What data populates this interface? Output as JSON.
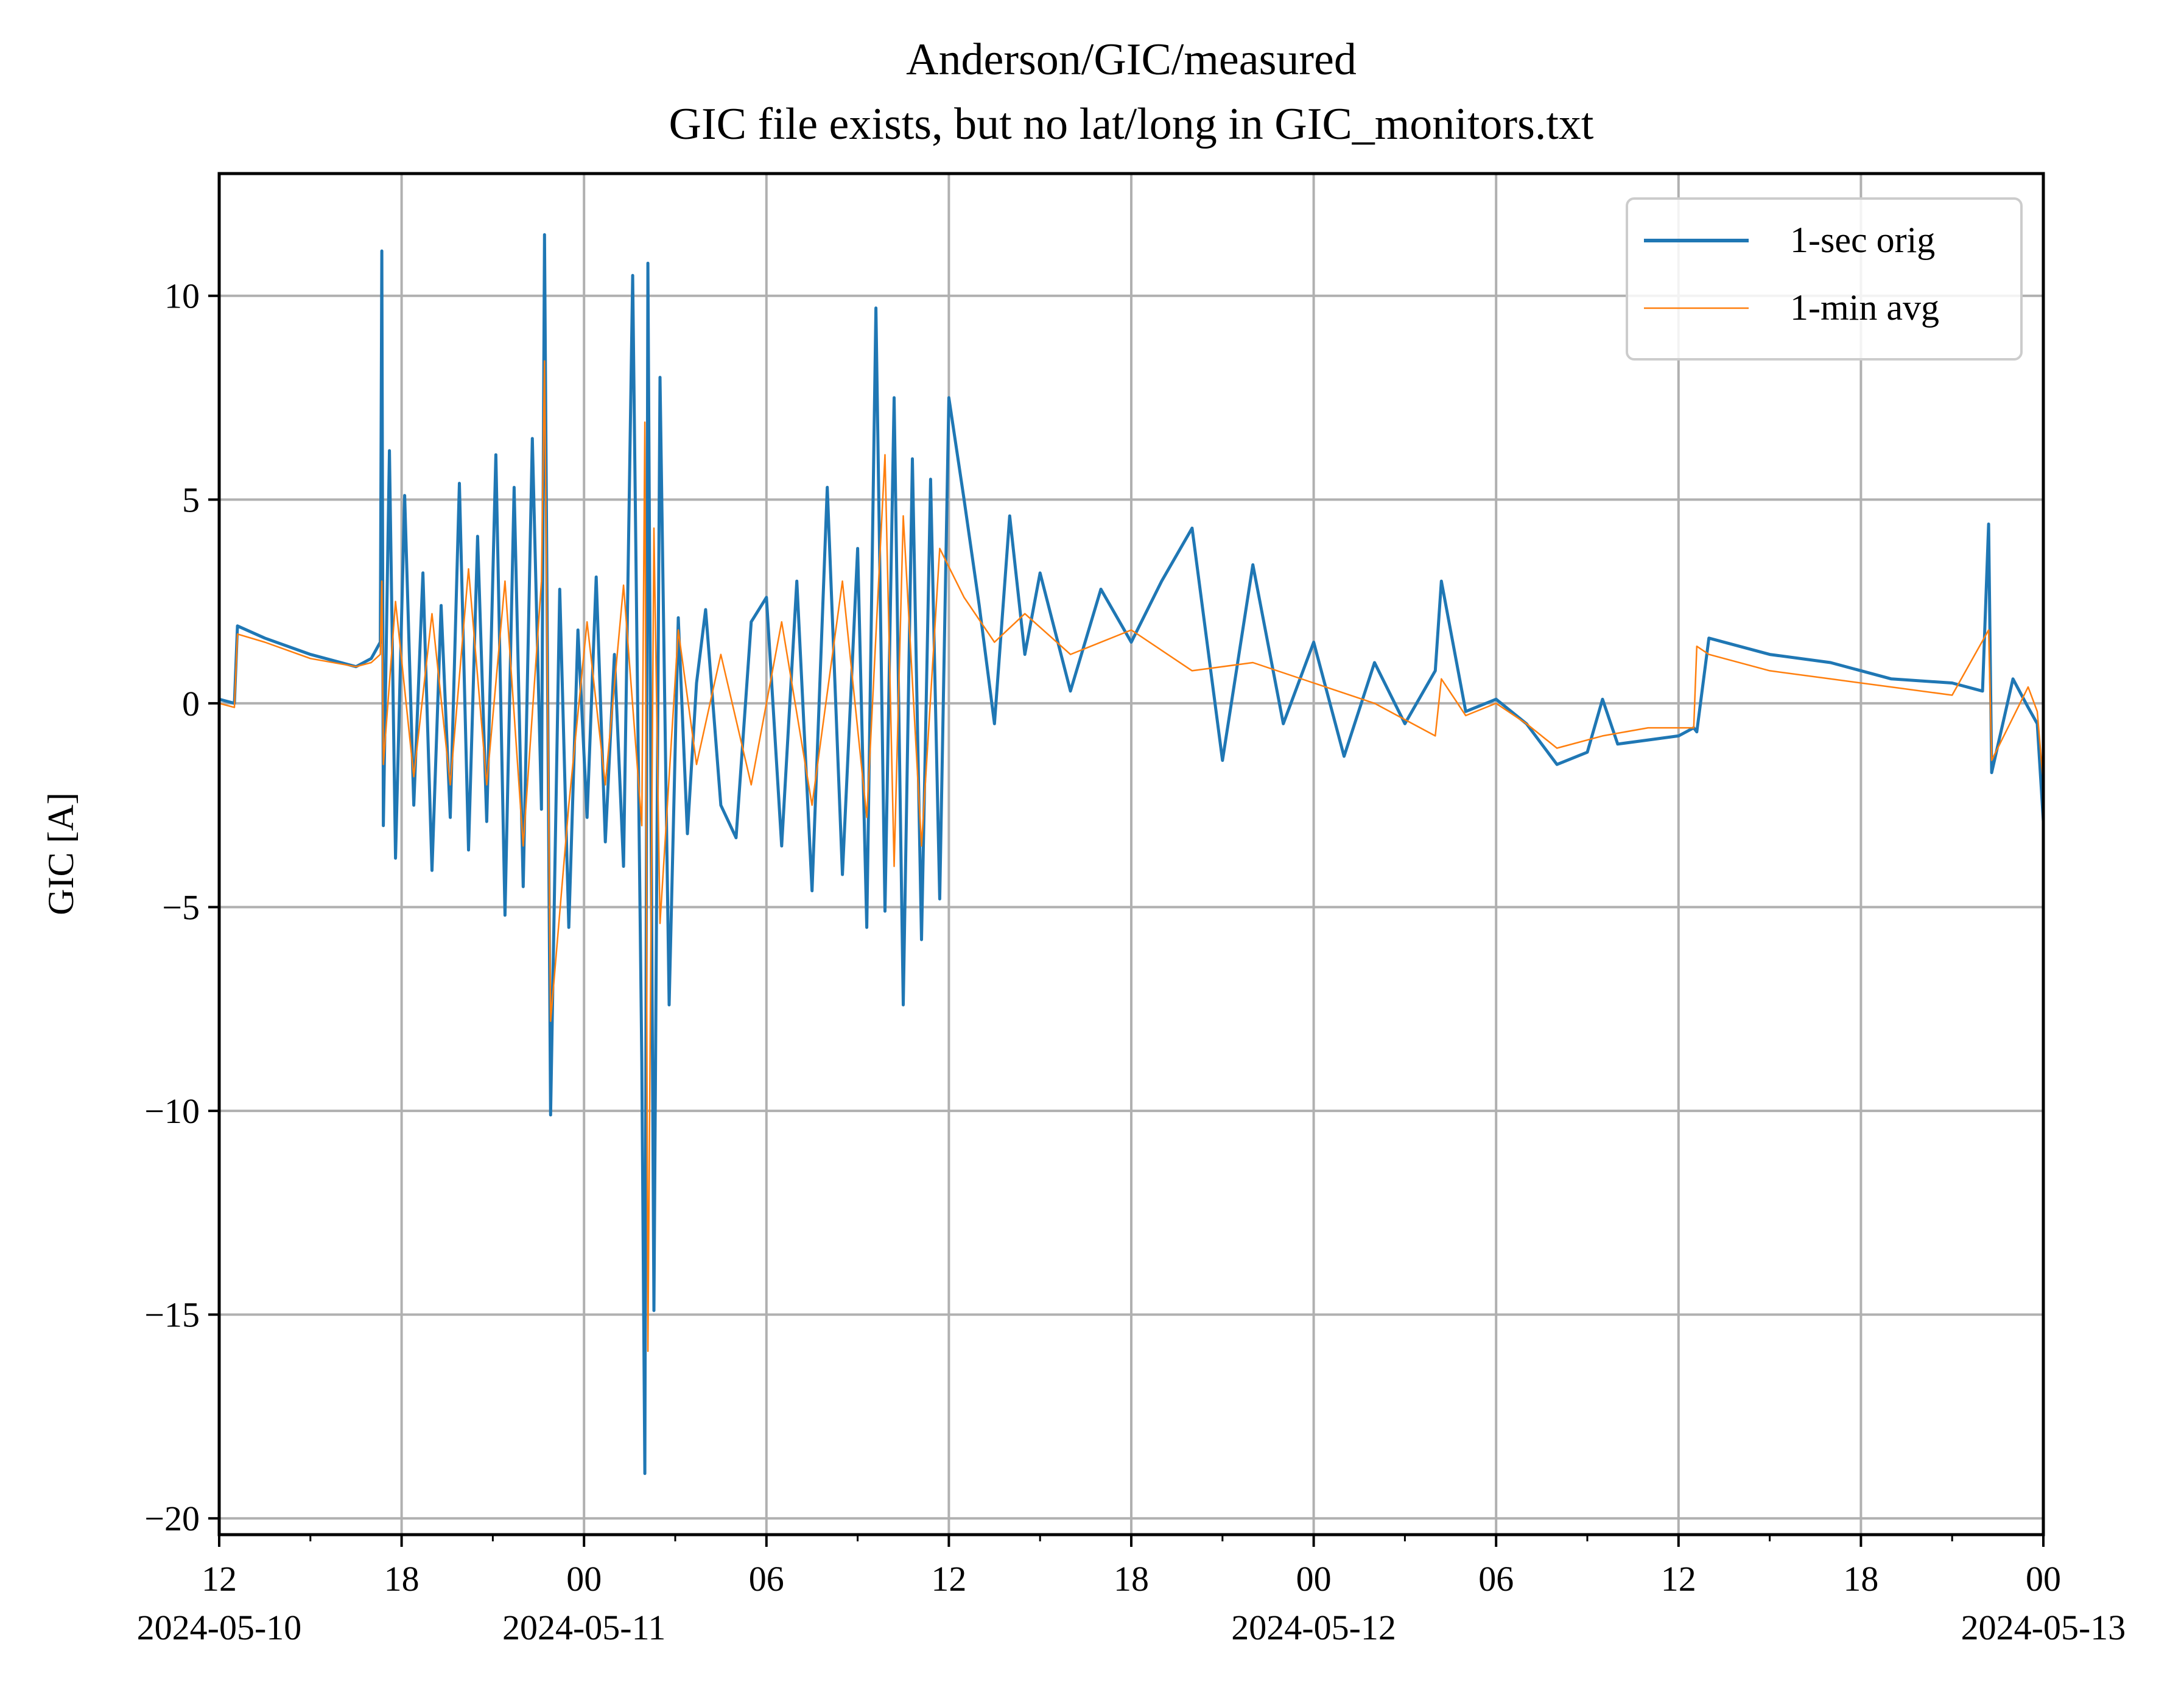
{
  "chart_data": {
    "type": "line",
    "title": "Anderson/GIC/measured",
    "subtitle": "GIC file exists, but no lat/long in GIC_monitors.txt",
    "xlabel": "",
    "ylabel": "GIC [A]",
    "ylim": [
      -20.4,
      13
    ],
    "xlim": [
      "2024-05-10T12:00",
      "2024-05-13T00:00"
    ],
    "y_ticks": [
      10,
      5,
      0,
      -5,
      -10,
      -15,
      -20
    ],
    "y_tick_labels": [
      "10",
      "5",
      "0",
      "−5",
      "−10",
      "−15",
      "−20"
    ],
    "x_ticks": [
      {
        "t": "2024-05-10T12:00",
        "label": "12",
        "date": "2024-05-10"
      },
      {
        "t": "2024-05-10T18:00",
        "label": "18",
        "date": ""
      },
      {
        "t": "2024-05-11T00:00",
        "label": "00",
        "date": "2024-05-11"
      },
      {
        "t": "2024-05-11T06:00",
        "label": "06",
        "date": ""
      },
      {
        "t": "2024-05-11T12:00",
        "label": "12",
        "date": ""
      },
      {
        "t": "2024-05-11T18:00",
        "label": "18",
        "date": ""
      },
      {
        "t": "2024-05-12T00:00",
        "label": "00",
        "date": "2024-05-12"
      },
      {
        "t": "2024-05-12T06:00",
        "label": "06",
        "date": ""
      },
      {
        "t": "2024-05-12T12:00",
        "label": "12",
        "date": ""
      },
      {
        "t": "2024-05-12T18:00",
        "label": "18",
        "date": ""
      },
      {
        "t": "2024-05-13T00:00",
        "label": "00",
        "date": "2024-05-13"
      }
    ],
    "grid": true,
    "legend_position": "top-right",
    "series": [
      {
        "name": "1-sec orig",
        "color": "#1f77b4",
        "x": [
          "2024-05-10T12:00",
          "2024-05-10T12:30",
          "2024-05-10T12:36",
          "2024-05-10T13:30",
          "2024-05-10T15:00",
          "2024-05-10T16:30",
          "2024-05-10T17:00",
          "2024-05-10T17:18",
          "2024-05-10T17:21",
          "2024-05-10T17:24",
          "2024-05-10T17:36",
          "2024-05-10T17:48",
          "2024-05-10T18:06",
          "2024-05-10T18:24",
          "2024-05-10T18:42",
          "2024-05-10T19:00",
          "2024-05-10T19:18",
          "2024-05-10T19:36",
          "2024-05-10T19:54",
          "2024-05-10T20:12",
          "2024-05-10T20:30",
          "2024-05-10T20:48",
          "2024-05-10T21:06",
          "2024-05-10T21:24",
          "2024-05-10T21:42",
          "2024-05-10T22:00",
          "2024-05-10T22:18",
          "2024-05-10T22:36",
          "2024-05-10T22:42",
          "2024-05-10T22:54",
          "2024-05-10T23:12",
          "2024-05-10T23:30",
          "2024-05-10T23:48",
          "2024-05-11T00:06",
          "2024-05-11T00:24",
          "2024-05-11T00:42",
          "2024-05-11T01:00",
          "2024-05-11T01:18",
          "2024-05-11T01:36",
          "2024-05-11T01:54",
          "2024-05-11T02:00",
          "2024-05-11T02:06",
          "2024-05-11T02:18",
          "2024-05-11T02:30",
          "2024-05-11T02:48",
          "2024-05-11T03:06",
          "2024-05-11T03:24",
          "2024-05-11T03:42",
          "2024-05-11T04:00",
          "2024-05-11T04:30",
          "2024-05-11T05:00",
          "2024-05-11T05:30",
          "2024-05-11T06:00",
          "2024-05-11T06:30",
          "2024-05-11T07:00",
          "2024-05-11T07:30",
          "2024-05-11T08:00",
          "2024-05-11T08:30",
          "2024-05-11T09:00",
          "2024-05-11T09:18",
          "2024-05-11T09:36",
          "2024-05-11T09:54",
          "2024-05-11T10:12",
          "2024-05-11T10:30",
          "2024-05-11T10:48",
          "2024-05-11T11:06",
          "2024-05-11T11:24",
          "2024-05-11T11:42",
          "2024-05-11T12:00",
          "2024-05-11T12:30",
          "2024-05-11T13:00",
          "2024-05-11T13:30",
          "2024-05-11T14:00",
          "2024-05-11T14:30",
          "2024-05-11T15:00",
          "2024-05-11T16:00",
          "2024-05-11T17:00",
          "2024-05-11T18:00",
          "2024-05-11T19:00",
          "2024-05-11T20:00",
          "2024-05-11T21:00",
          "2024-05-11T22:00",
          "2024-05-11T23:00",
          "2024-05-12T00:00",
          "2024-05-12T01:00",
          "2024-05-12T02:00",
          "2024-05-12T03:00",
          "2024-05-12T04:00",
          "2024-05-12T04:12",
          "2024-05-12T05:00",
          "2024-05-12T06:00",
          "2024-05-12T07:00",
          "2024-05-12T08:00",
          "2024-05-12T09:00",
          "2024-05-12T09:30",
          "2024-05-12T10:00",
          "2024-05-12T11:00",
          "2024-05-12T12:00",
          "2024-05-12T12:30",
          "2024-05-12T12:36",
          "2024-05-12T13:00",
          "2024-05-12T15:00",
          "2024-05-12T17:00",
          "2024-05-12T19:00",
          "2024-05-12T21:00",
          "2024-05-12T22:00",
          "2024-05-12T22:12",
          "2024-05-12T22:18",
          "2024-05-12T23:00",
          "2024-05-12T23:30",
          "2024-05-12T23:48",
          "2024-05-13T00:00"
        ],
        "y": [
          0.1,
          0.0,
          1.9,
          1.6,
          1.2,
          0.9,
          1.1,
          1.5,
          11.1,
          -3.0,
          6.2,
          -3.8,
          5.1,
          -2.5,
          3.2,
          -4.1,
          2.4,
          -2.8,
          5.4,
          -3.6,
          4.1,
          -2.9,
          6.1,
          -5.2,
          5.3,
          -4.5,
          6.5,
          -2.6,
          11.5,
          -10.1,
          2.8,
          -5.5,
          1.8,
          -2.8,
          3.1,
          -3.4,
          1.2,
          -4.0,
          10.5,
          -8.8,
          -18.9,
          10.8,
          -14.9,
          8.0,
          -7.4,
          2.1,
          -3.2,
          0.5,
          2.3,
          -2.5,
          -3.3,
          2.0,
          2.6,
          -3.5,
          3.0,
          -4.6,
          5.3,
          -4.2,
          3.8,
          -5.5,
          9.7,
          -5.1,
          7.5,
          -7.4,
          6.0,
          -5.8,
          5.5,
          -4.8,
          7.5,
          5.0,
          2.4,
          -0.5,
          4.6,
          1.2,
          3.2,
          0.3,
          2.8,
          1.5,
          3.0,
          4.3,
          -1.4,
          3.4,
          -0.5,
          1.5,
          -1.3,
          1.0,
          -0.5,
          0.8,
          3.0,
          -0.2,
          0.1,
          -0.5,
          -1.5,
          -1.2,
          0.1,
          -1.0,
          -0.9,
          -0.8,
          -0.6,
          -0.7,
          1.6,
          1.2,
          1.0,
          0.6,
          0.5,
          0.3,
          4.4,
          -1.7,
          0.6,
          -0.1,
          -0.5,
          -2.9
        ]
      },
      {
        "name": "1-min avg",
        "color": "#ff7f0e",
        "x": [
          "2024-05-10T12:00",
          "2024-05-10T12:30",
          "2024-05-10T12:36",
          "2024-05-10T13:30",
          "2024-05-10T15:00",
          "2024-05-10T16:30",
          "2024-05-10T17:00",
          "2024-05-10T17:18",
          "2024-05-10T17:21",
          "2024-05-10T17:24",
          "2024-05-10T17:48",
          "2024-05-10T18:24",
          "2024-05-10T19:00",
          "2024-05-10T19:36",
          "2024-05-10T20:12",
          "2024-05-10T20:48",
          "2024-05-10T21:24",
          "2024-05-10T22:00",
          "2024-05-10T22:36",
          "2024-05-10T22:42",
          "2024-05-10T22:54",
          "2024-05-10T23:30",
          "2024-05-11T00:06",
          "2024-05-11T00:42",
          "2024-05-11T01:18",
          "2024-05-11T01:54",
          "2024-05-11T02:00",
          "2024-05-11T02:06",
          "2024-05-11T02:18",
          "2024-05-11T02:30",
          "2024-05-11T03:06",
          "2024-05-11T03:42",
          "2024-05-11T04:30",
          "2024-05-11T05:30",
          "2024-05-11T06:30",
          "2024-05-11T07:30",
          "2024-05-11T08:30",
          "2024-05-11T09:18",
          "2024-05-11T09:54",
          "2024-05-11T10:12",
          "2024-05-11T10:30",
          "2024-05-11T11:06",
          "2024-05-11T11:42",
          "2024-05-11T12:30",
          "2024-05-11T13:30",
          "2024-05-11T14:30",
          "2024-05-11T16:00",
          "2024-05-11T18:00",
          "2024-05-11T20:00",
          "2024-05-11T22:00",
          "2024-05-12T00:00",
          "2024-05-12T02:00",
          "2024-05-12T04:00",
          "2024-05-12T04:12",
          "2024-05-12T05:00",
          "2024-05-12T06:00",
          "2024-05-12T07:00",
          "2024-05-12T08:00",
          "2024-05-12T09:30",
          "2024-05-12T11:00",
          "2024-05-12T12:30",
          "2024-05-12T12:36",
          "2024-05-12T13:00",
          "2024-05-12T15:00",
          "2024-05-12T17:00",
          "2024-05-12T19:00",
          "2024-05-12T21:00",
          "2024-05-12T22:12",
          "2024-05-12T22:18",
          "2024-05-12T23:30",
          "2024-05-12T23:48",
          "2024-05-13T00:00"
        ],
        "y": [
          0.0,
          -0.1,
          1.7,
          1.5,
          1.1,
          0.9,
          1.0,
          1.2,
          3.0,
          -1.5,
          2.5,
          -1.8,
          2.2,
          -2.0,
          3.3,
          -2.0,
          3.0,
          -3.5,
          3.0,
          8.4,
          -7.8,
          -2.5,
          2.0,
          -2.0,
          2.9,
          -3.0,
          6.9,
          -15.9,
          4.3,
          -5.4,
          1.8,
          -1.5,
          1.2,
          -2.0,
          2.0,
          -2.5,
          3.0,
          -2.8,
          6.1,
          -4.0,
          4.6,
          -3.5,
          3.8,
          2.6,
          1.5,
          2.2,
          1.2,
          1.8,
          0.8,
          1.0,
          0.5,
          0.0,
          -0.8,
          0.6,
          -0.3,
          0.0,
          -0.5,
          -1.1,
          -0.8,
          -0.6,
          -0.6,
          1.4,
          1.2,
          0.8,
          0.6,
          0.4,
          0.2,
          1.8,
          -1.4,
          0.4,
          -0.2,
          -2.0
        ]
      }
    ]
  }
}
